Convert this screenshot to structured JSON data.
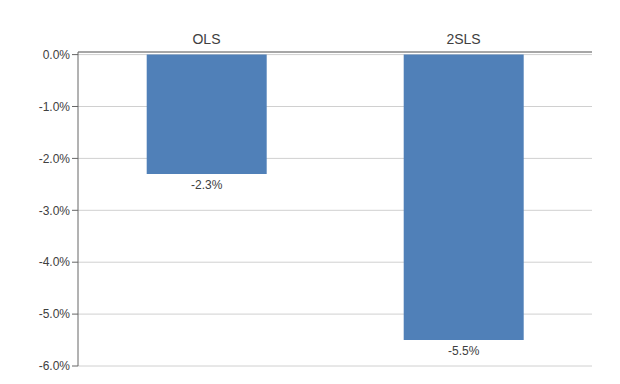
{
  "chart_data": {
    "type": "bar",
    "categories": [
      "OLS",
      "2SLS"
    ],
    "values": [
      -2.3,
      -5.5
    ],
    "value_labels": [
      "-2.3%",
      "-5.5%"
    ],
    "data_labels": true,
    "color": "#5080b8",
    "ylim": [
      -6.0,
      0.05
    ],
    "yticks": [
      {
        "value": 0.0,
        "label": "0.0%"
      },
      {
        "value": -1.0,
        "label": "-1.0%"
      },
      {
        "value": -2.0,
        "label": "-2.0%"
      },
      {
        "value": -3.0,
        "label": "-3.0%"
      },
      {
        "value": -4.0,
        "label": "-4.0%"
      },
      {
        "value": -5.0,
        "label": "-5.0%"
      },
      {
        "value": -6.0,
        "label": "-6.0%"
      }
    ],
    "grid": true
  }
}
